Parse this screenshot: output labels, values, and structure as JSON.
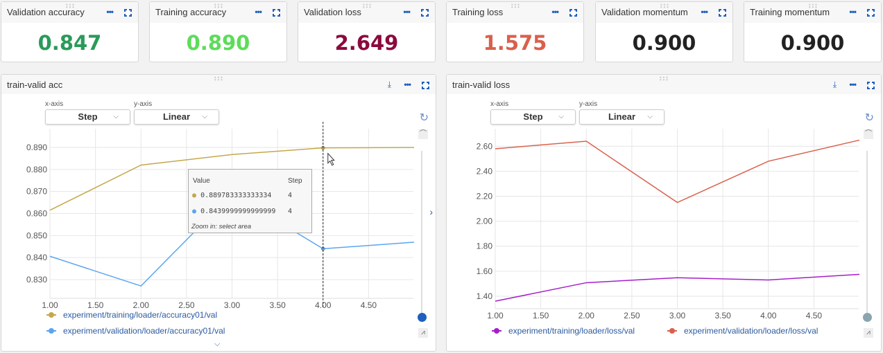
{
  "cards": [
    {
      "title": "Validation accuracy",
      "value": "0.847",
      "color": "#2a9a5a"
    },
    {
      "title": "Training accuracy",
      "value": "0.890",
      "color": "#5ddc5a"
    },
    {
      "title": "Validation loss",
      "value": "2.649",
      "color": "#8b0a3e"
    },
    {
      "title": "Training loss",
      "value": "1.575",
      "color": "#d9604c"
    },
    {
      "title": "Validation momentum",
      "value": "0.900",
      "color": "#222222"
    },
    {
      "title": "Training momentum",
      "value": "0.900",
      "color": "#222222"
    }
  ],
  "controls": {
    "xaxis_label": "x-axis",
    "yaxis_label": "y-axis",
    "xaxis_value": "Step",
    "yaxis_value": "Linear"
  },
  "tooltip": {
    "value_header": "Value",
    "step_header": "Step",
    "rows": [
      {
        "value": "0.889783333333334",
        "step": "4",
        "color": "#c4a84a"
      },
      {
        "value": "0.8439999999999999",
        "step": "4",
        "color": "#5aa5f0"
      }
    ],
    "hint": "Zoom in: select area"
  },
  "chart_data": [
    {
      "type": "line",
      "title": "train-valid acc",
      "x": [
        1,
        2,
        3,
        4,
        5
      ],
      "xlim": [
        1,
        5
      ],
      "ylim": [
        0.8215,
        0.8985
      ],
      "xticks": [
        "1.00",
        "1.50",
        "2.00",
        "2.50",
        "3.00",
        "3.50",
        "4.00",
        "4.50"
      ],
      "yticks": [
        "0.830",
        "0.840",
        "0.850",
        "0.860",
        "0.870",
        "0.880",
        "0.890"
      ],
      "series": [
        {
          "name": "experiment/training/loader/accuracy01/val",
          "color": "#c4a84a",
          "values": [
            0.8615,
            0.882,
            0.8868,
            0.8898,
            0.89
          ]
        },
        {
          "name": "experiment/validation/loader/accuracy01/val",
          "color": "#5aa5f0",
          "values": [
            0.8406,
            0.8271,
            0.869,
            0.844,
            0.847
          ]
        }
      ],
      "hover_step": 4,
      "grid": true,
      "legend": "bottom"
    },
    {
      "type": "line",
      "title": "train-valid loss",
      "x": [
        1,
        2,
        3,
        4,
        5
      ],
      "xlim": [
        1,
        5
      ],
      "ylim": [
        1.3,
        2.74
      ],
      "xticks": [
        "1.00",
        "1.50",
        "2.00",
        "2.50",
        "3.00",
        "3.50",
        "4.00",
        "4.50"
      ],
      "yticks": [
        "1.40",
        "1.60",
        "1.80",
        "2.00",
        "2.20",
        "2.40",
        "2.60"
      ],
      "series": [
        {
          "name": "experiment/training/loader/loss/val",
          "color": "#a61dc9",
          "values": [
            1.36,
            1.508,
            1.548,
            1.53,
            1.575
          ]
        },
        {
          "name": "experiment/validation/loader/loss/val",
          "color": "#d9604c",
          "values": [
            2.58,
            2.64,
            2.15,
            2.48,
            2.649
          ]
        }
      ],
      "grid": true,
      "legend": "bottom"
    }
  ]
}
